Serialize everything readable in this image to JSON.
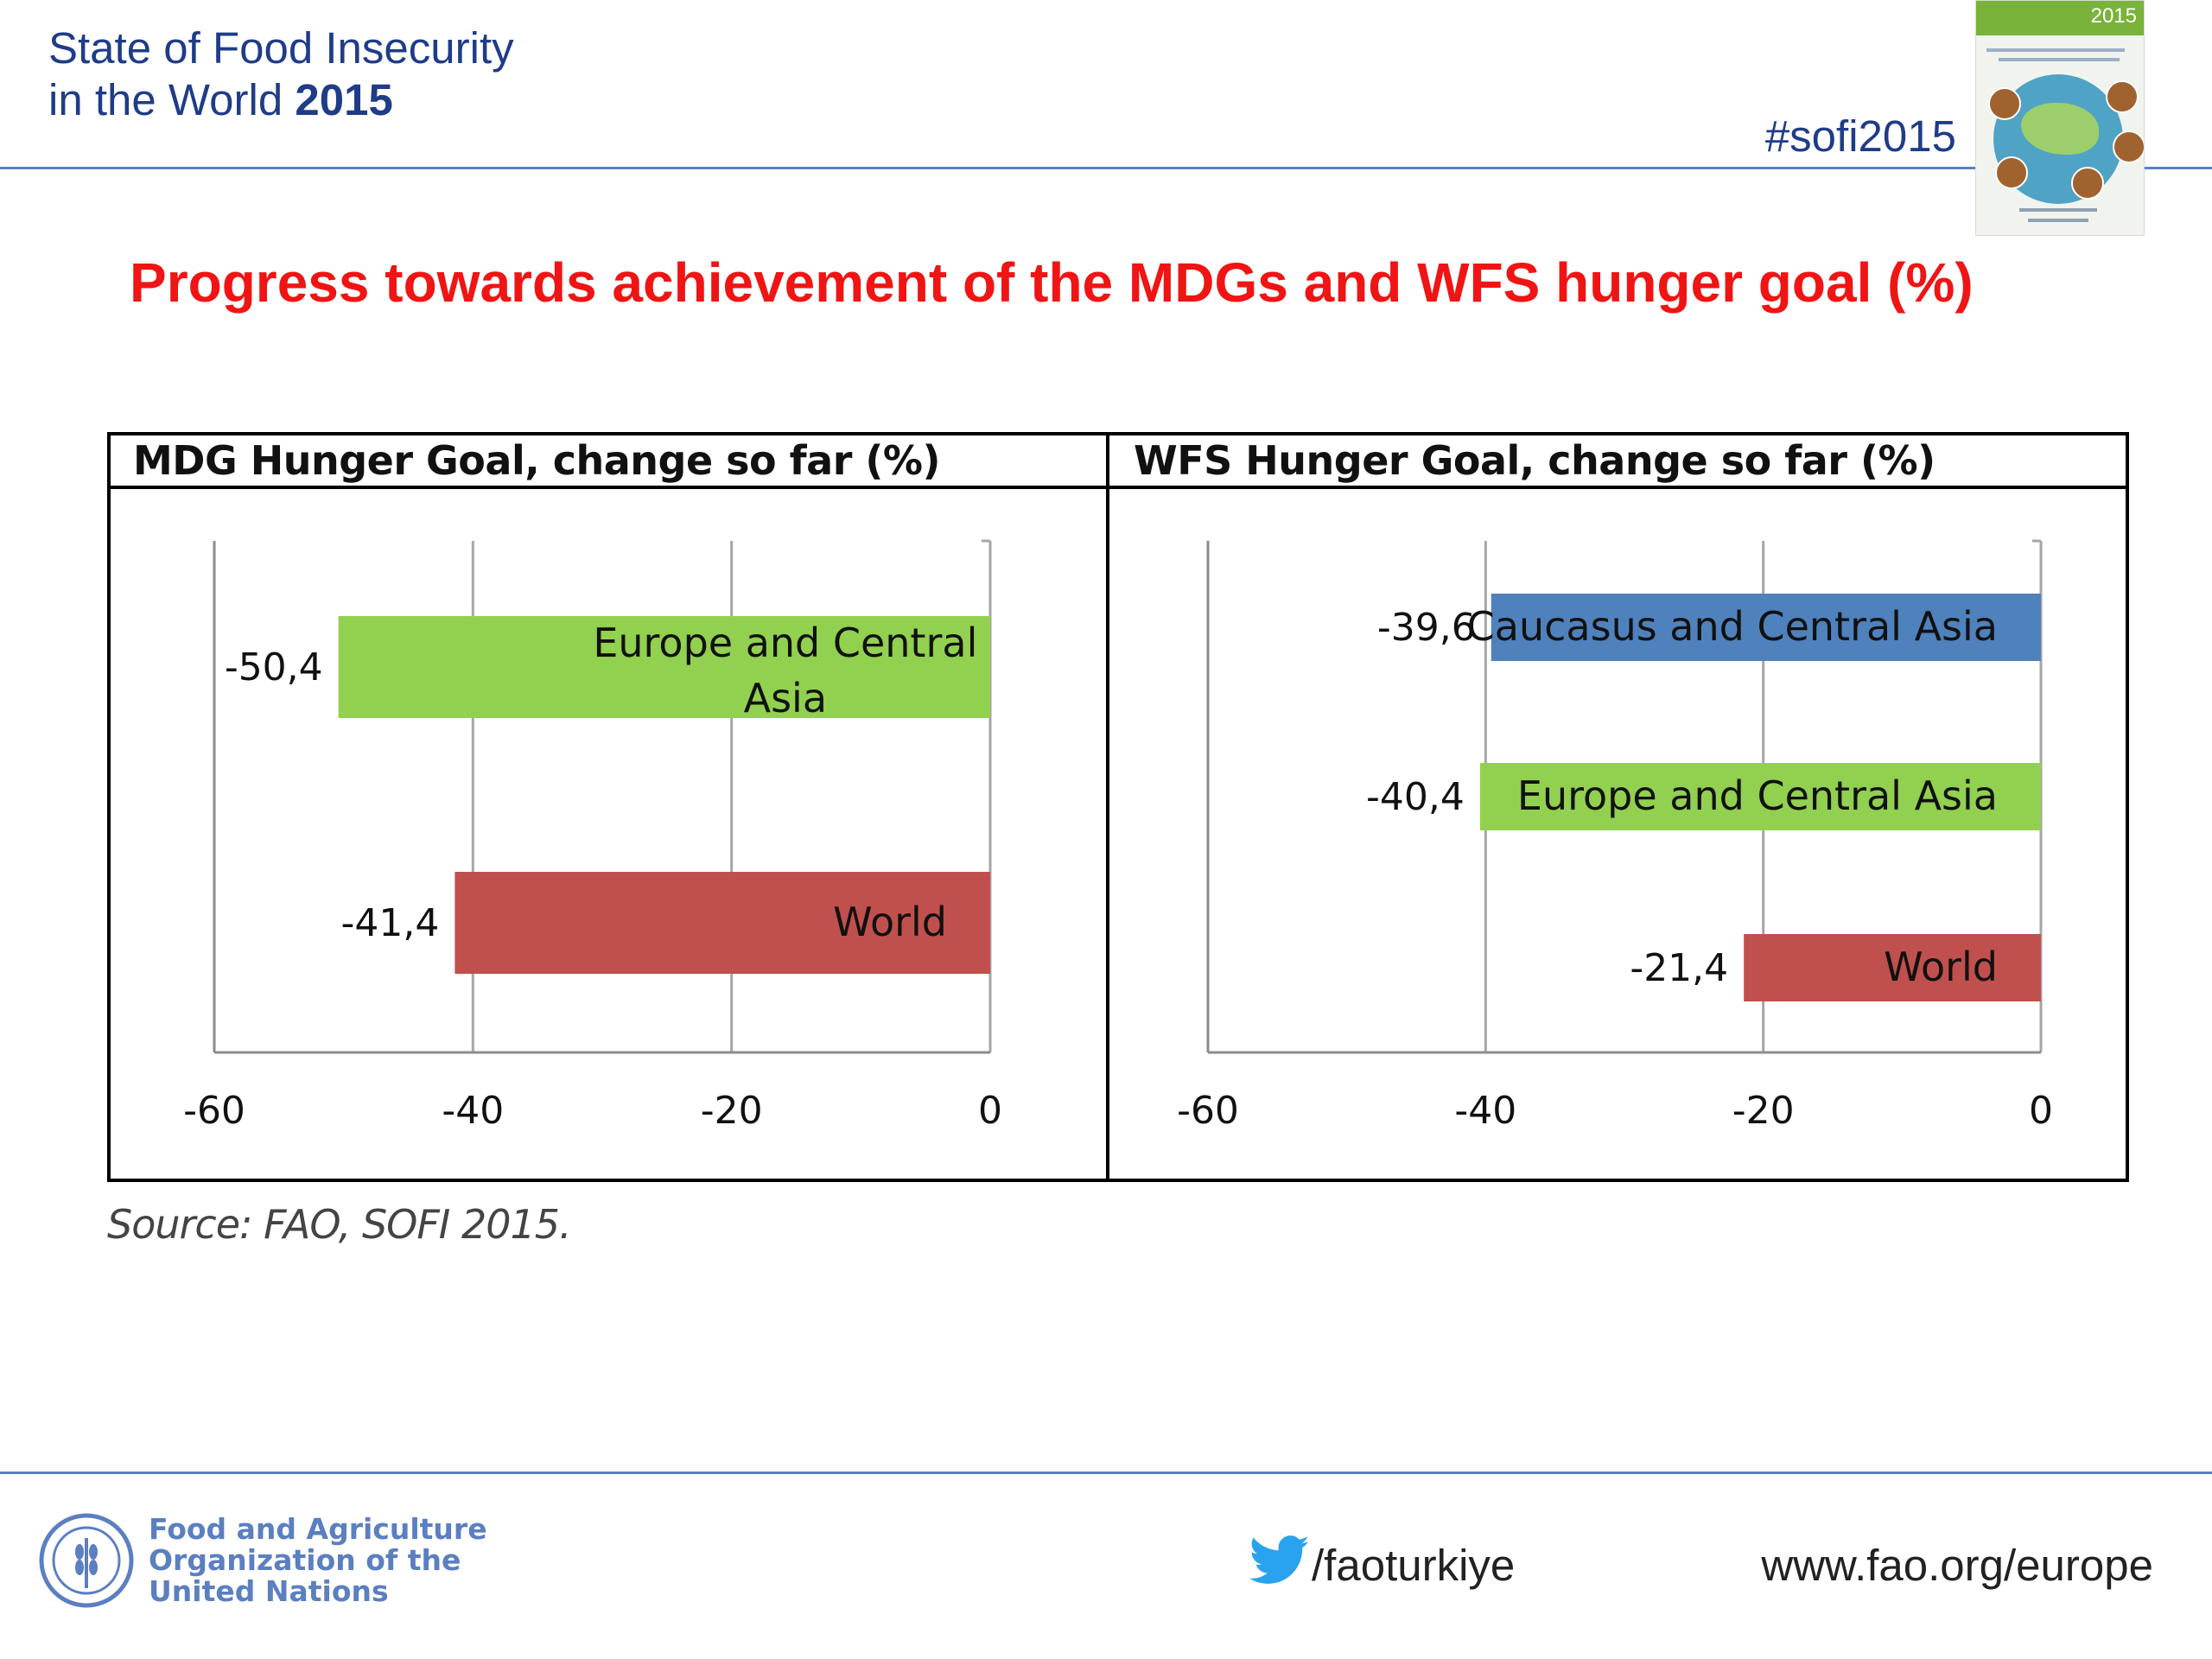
{
  "header": {
    "title_line1": "State of Food Insecurity",
    "title_line2_prefix": "in the World ",
    "title_line2_year": "2015",
    "hashtag": "#sofi2015",
    "cover_year": "2015"
  },
  "main": {
    "title": "Progress towards achievement of the MDGs and WFS hunger goal (%)",
    "source": "Source: FAO, SOFI 2015."
  },
  "chart_data": [
    {
      "type": "bar",
      "orientation": "horizontal",
      "title": "MDG Hunger Goal, change so far (%)",
      "categories": [
        "Europe and Central Asia",
        "World"
      ],
      "values": [
        -50.4,
        -41.4
      ],
      "value_labels": [
        "-50,4",
        "-41,4"
      ],
      "colors": [
        "#92d050",
        "#c0504d"
      ],
      "xlim": [
        -60,
        0
      ],
      "xticks": [
        "-60",
        "-40",
        "-20",
        "0"
      ],
      "grid": true
    },
    {
      "type": "bar",
      "orientation": "horizontal",
      "title": "WFS Hunger Goal, change so far (%)",
      "categories": [
        "Caucasus and Central Asia",
        "Europe and Central Asia",
        "World"
      ],
      "values": [
        -39.6,
        -40.4,
        -21.4
      ],
      "value_labels": [
        "-39,6",
        "-40,4",
        "-21,4"
      ],
      "colors": [
        "#4f81bd",
        "#92d050",
        "#c0504d"
      ],
      "xlim": [
        -60,
        0
      ],
      "xticks": [
        "-60",
        "-40",
        "-20",
        "0"
      ],
      "grid": true
    }
  ],
  "footer": {
    "org_line1": "Food and Agriculture",
    "org_line2": "Organization of the",
    "org_line3": "United Nations",
    "twitter_handle": "/faoturkiye",
    "website": "www.fao.org/europe"
  },
  "icons": {
    "logo": "fao-logo-icon",
    "twitter": "twitter-bird-icon",
    "cover": "report-cover-thumbnail"
  }
}
